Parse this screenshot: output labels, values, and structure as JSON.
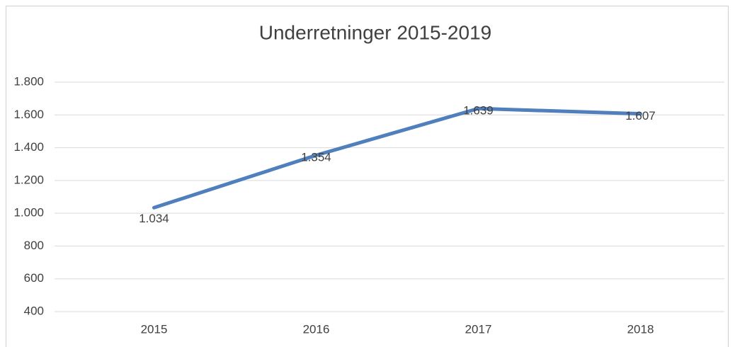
{
  "chart_data": {
    "type": "line",
    "title": "Underretninger 2015-2019",
    "categories": [
      "2015",
      "2016",
      "2017",
      "2018"
    ],
    "series": [
      {
        "name": "Underretninger",
        "color": "#4f7fbc",
        "values": [
          1034,
          1354,
          1639,
          1607
        ],
        "value_labels": [
          "1.034",
          "1.354",
          "1.639",
          "1.607"
        ]
      }
    ],
    "ylim": [
      400,
      1800
    ],
    "yticks": [
      400,
      600,
      800,
      {
        "value": 1000,
        "label": "1.000"
      },
      {
        "value": 1200,
        "label": "1.200"
      },
      {
        "value": 1400,
        "label": "1.400"
      },
      {
        "value": 1600,
        "label": "1.600"
      },
      {
        "value": 1800,
        "label": "1.800"
      }
    ],
    "grid": true
  }
}
